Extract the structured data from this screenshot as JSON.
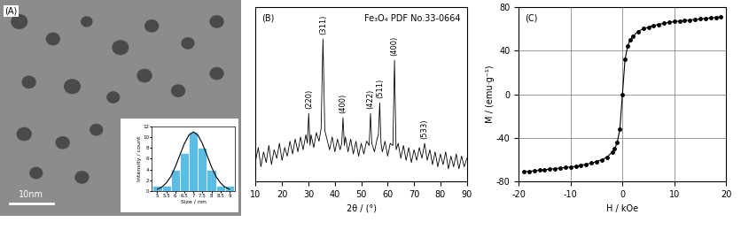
{
  "chart_data": [
    {
      "type": "image",
      "panel": "(A)",
      "scale_bar": "10nm",
      "inset": {
        "type": "bar",
        "x": [
          5,
          5.5,
          6,
          6.5,
          7,
          7.5,
          8,
          8.5,
          9
        ],
        "values": [
          1,
          1,
          4,
          7,
          11,
          8,
          4,
          1,
          1
        ],
        "color": "#5bbce4",
        "xlabel": "Size / nm",
        "ylabel": "Intensity / count",
        "xlim": [
          4.7,
          9.3
        ],
        "ylim": [
          0,
          12
        ],
        "xticks": [
          5,
          5.5,
          6,
          6.5,
          7,
          7.5,
          8,
          8.5,
          9
        ],
        "yticks": [
          0,
          2,
          4,
          6,
          8,
          10,
          12
        ],
        "fit": {
          "type": "line",
          "color": "#000000",
          "x": [
            5,
            5.25,
            5.5,
            5.75,
            6,
            6.25,
            6.5,
            6.75,
            7,
            7.25,
            7.5,
            7.75,
            8,
            8.25,
            8.5,
            8.75,
            9
          ],
          "values": [
            0.3,
            0.7,
            1.5,
            2.7,
            4.5,
            6.7,
            8.8,
            10.4,
            11,
            10.4,
            8.8,
            6.7,
            4.5,
            2.7,
            1.5,
            0.7,
            0.3
          ]
        }
      }
    },
    {
      "type": "line",
      "panel": "(B)",
      "title": "Fe₃O₄ PDF No.33-0664",
      "xlabel": "2θ / (°)",
      "color": "#000000",
      "tick_labels": "x",
      "x": [
        10,
        11,
        12,
        13,
        14,
        15,
        16,
        17,
        18,
        19,
        20,
        21,
        22,
        23,
        24,
        25,
        26,
        27,
        28,
        29,
        29.6,
        30.1,
        30.6,
        31,
        32,
        33,
        34,
        34.8,
        35.5,
        36.2,
        37,
        38,
        39,
        40,
        41,
        42,
        42.6,
        43.1,
        43.6,
        44,
        45,
        46,
        47,
        48,
        49,
        50,
        51,
        52,
        53,
        53.5,
        54,
        55,
        56,
        56.5,
        57,
        57.5,
        58,
        59,
        60,
        61,
        62,
        62.6,
        63.2,
        64,
        65,
        66,
        67,
        68,
        69,
        70,
        71,
        72,
        73,
        74,
        75,
        76,
        77,
        78,
        79,
        80,
        81,
        82,
        83,
        84,
        85,
        86,
        87,
        88,
        89,
        90
      ],
      "values": [
        40,
        46,
        37,
        44,
        39,
        47,
        38,
        45,
        41,
        48,
        40,
        46,
        42,
        49,
        43,
        50,
        44,
        51,
        45,
        52,
        48,
        62,
        47,
        52,
        46,
        53,
        49,
        55,
        97,
        54,
        50,
        45,
        51,
        44,
        50,
        45,
        48,
        60,
        47,
        51,
        44,
        50,
        43,
        49,
        42,
        48,
        43,
        49,
        47,
        62,
        48,
        44,
        50,
        52,
        67,
        48,
        44,
        49,
        42,
        48,
        47,
        87,
        45,
        48,
        41,
        47,
        40,
        46,
        39,
        45,
        40,
        46,
        41,
        48,
        40,
        45,
        38,
        44,
        37,
        43,
        38,
        44,
        36,
        42,
        37,
        43,
        36,
        42,
        37,
        41
      ],
      "xlim": [
        10,
        90
      ],
      "ylim": [
        30,
        112
      ],
      "xticks": [
        10,
        20,
        30,
        40,
        50,
        60,
        70,
        80,
        90
      ],
      "yticks": [],
      "annotations": [
        {
          "text": "(220)",
          "x": 30.1
        },
        {
          "text": "(311)",
          "x": 35.5
        },
        {
          "text": "(400)",
          "x": 43.1
        },
        {
          "text": "(422)",
          "x": 53.5
        },
        {
          "text": "(511)",
          "x": 57
        },
        {
          "text": "(400)",
          "x": 62.6
        },
        {
          "text": "(533)",
          "x": 74
        }
      ]
    },
    {
      "type": "line",
      "panel": "(C)",
      "xlabel": "H / kOe",
      "ylabel": "M / (emu·g⁻¹)",
      "color": "#000000",
      "marker": "o",
      "line_style": "solid",
      "grid": true,
      "x": [
        -19,
        -18,
        -17,
        -16,
        -15,
        -14,
        -13,
        -12,
        -11,
        -10,
        -9,
        -8,
        -7,
        -6,
        -5,
        -4,
        -3,
        -2,
        -1.5,
        -1,
        -0.5,
        0,
        0.5,
        1,
        1.5,
        2,
        3,
        4,
        5,
        6,
        7,
        8,
        9,
        10,
        11,
        12,
        13,
        14,
        15,
        16,
        17,
        18,
        19
      ],
      "values": [
        -71,
        -70.5,
        -70,
        -69.5,
        -69,
        -68.5,
        -68,
        -67.5,
        -67,
        -66.5,
        -65.8,
        -65,
        -64,
        -63,
        -61.5,
        -60,
        -57.5,
        -53,
        -50,
        -44,
        -32,
        0,
        32,
        44,
        50,
        53,
        57.5,
        60,
        61.5,
        63,
        64,
        65,
        65.8,
        66.5,
        67,
        67.5,
        68,
        68.5,
        69,
        69.5,
        70,
        70.5,
        71
      ],
      "xlim": [
        -20,
        20
      ],
      "ylim": [
        -80,
        80
      ],
      "xticks": [
        -20,
        -10,
        0,
        10,
        20
      ],
      "yticks": [
        -80,
        -40,
        0,
        40,
        80
      ]
    }
  ]
}
